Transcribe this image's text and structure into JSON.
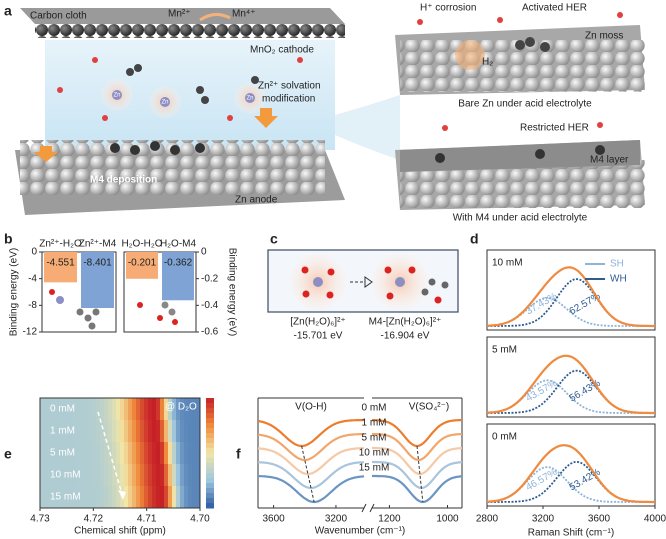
{
  "panel_labels": [
    "a",
    "b",
    "c",
    "d",
    "e",
    "f"
  ],
  "schematic": {
    "carbon_cloth": "Carbon cloth",
    "mn2": "Mn²⁺",
    "mn4": "Mn⁴⁺",
    "cathode": "MnO₂ cathode",
    "solvation": [
      "Zn²⁺ solvation",
      "modification"
    ],
    "zn_labels": [
      "Zn",
      "Zn",
      "Zn"
    ],
    "deposition": "M4 deposition",
    "anode": "Zn anode",
    "h_corrosion": "H⁺ corrosion",
    "activated_her": "Activated HER",
    "zn_moss": "Zn moss",
    "h2": "H₂",
    "bare_caption": "Bare Zn under acid electrolyte",
    "restricted_her": "Restricted HER",
    "m4_layer": "M4 layer",
    "m4_caption": "With M4 under acid electrolyte"
  },
  "solvation_diagram": {
    "left": {
      "label": "[Zn(H₂O)₆]²⁺",
      "energy": "-15.701 eV"
    },
    "right": {
      "label": "M4-[Zn(H₂O)₆]²⁺",
      "energy": "-16.904 eV"
    }
  },
  "chart_data": [
    {
      "type": "bar",
      "categories": [
        "Zn²⁺-H₂O",
        "Zn²⁺-M4"
      ],
      "values": [
        -4.551,
        -8.401
      ],
      "colors": [
        "#f6ac74",
        "#7fa3d4"
      ],
      "ylabel": "Binding energy (eV)",
      "ylim": [
        0,
        -12
      ],
      "yticks": [
        0,
        -4,
        -8,
        -12
      ]
    },
    {
      "type": "bar",
      "categories": [
        "H₂O-H₂O",
        "H₂O-M4"
      ],
      "values": [
        -0.201,
        -0.362
      ],
      "colors": [
        "#f6ac74",
        "#7fa3d4"
      ],
      "ylabel": "Binding energy (eV)",
      "ylim": [
        0,
        -0.6
      ],
      "yticks": [
        0,
        -0.2,
        -0.4,
        -0.6
      ]
    },
    {
      "type": "raman",
      "categories": [
        "10 mM",
        "5 mM",
        "0 mM"
      ],
      "xlabel": "Raman Shift (cm⁻¹)",
      "xlim": [
        2800,
        4000
      ],
      "xticks": [
        2800,
        3200,
        3600,
        4000
      ],
      "envelope_color": "#ef8a3f",
      "series": [
        {
          "name": "SH",
          "color": "#8fb3d9",
          "center": 3230,
          "values": [
            37.43,
            43.57,
            46.57
          ],
          "value_labels": [
            "37.43%",
            "43.57%",
            "46.57%"
          ]
        },
        {
          "name": "WH",
          "color": "#2e5c92",
          "center": 3440,
          "values": [
            62.57,
            56.43,
            53.42
          ],
          "value_labels": [
            "62.57%",
            "56.43%",
            "53.42%"
          ]
        }
      ]
    },
    {
      "type": "heatmap",
      "categories": [
        "0 mM",
        "1 mM",
        "5 mM",
        "10 mM",
        "15 mM"
      ],
      "values": [
        4.7085,
        4.7082,
        4.7078,
        4.7075,
        4.7072
      ],
      "annotation": "@ D₂O",
      "xlabel": "Chemical shift (ppm)",
      "xlim": [
        4.73,
        4.7
      ],
      "xticks": [
        4.73,
        4.72,
        4.71,
        {
          "value": 4.7,
          "label": "4.70"
        }
      ],
      "colormap": [
        "#2c5aa0",
        "#9ec6de",
        "#f2e6a6",
        "#f08a3c",
        "#c62027"
      ]
    },
    {
      "type": "ftir",
      "categories": [
        "0 mM",
        "1 mM",
        "5 mM",
        "10 mM",
        "15 mM"
      ],
      "colors": [
        "#ec7d2f",
        "#f3a66a",
        "#f5c9a6",
        "#a9c4dd",
        "#6b95c2"
      ],
      "annotations": [
        "V(O-H)",
        "V(SO₄²⁻)"
      ],
      "oh_valley": [
        3420,
        3400,
        3380,
        3360,
        3340
      ],
      "so4_valley": [
        1105,
        1100,
        1095,
        1090,
        1085
      ],
      "xlabel": "Wavenumber (cm⁻¹)",
      "xlim": [
        [
          3700,
          3020
        ],
        [
          1260,
          950
        ]
      ],
      "xticks": [
        3600,
        3200,
        1200,
        1000
      ]
    }
  ]
}
